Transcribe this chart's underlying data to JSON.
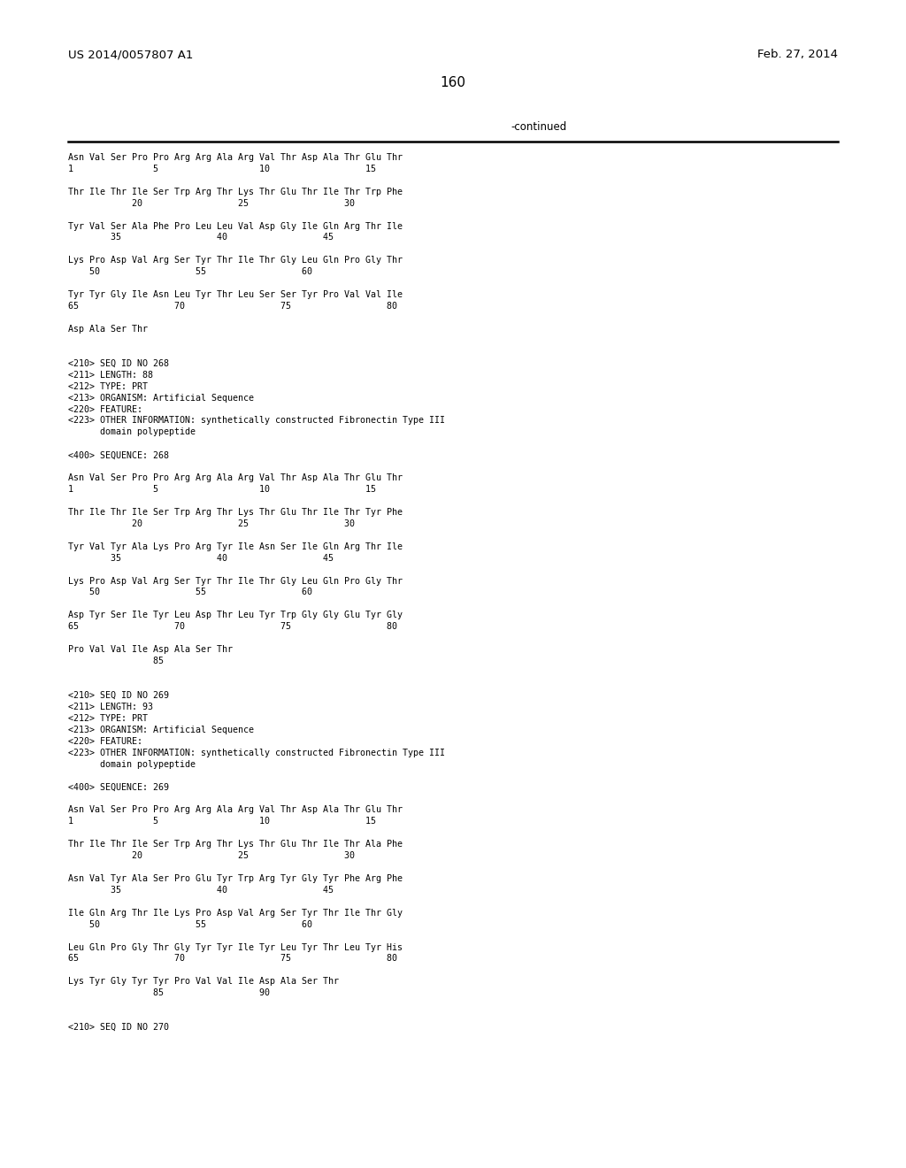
{
  "header_left": "US 2014/0057807 A1",
  "header_right": "Feb. 27, 2014",
  "page_number": "160",
  "continued_label": "-continued",
  "background_color": "#ffffff",
  "text_color": "#000000",
  "body_lines": [
    "Asn Val Ser Pro Pro Arg Arg Ala Arg Val Thr Asp Ala Thr Glu Thr",
    "1               5                   10                  15",
    "",
    "Thr Ile Thr Ile Ser Trp Arg Thr Lys Thr Glu Thr Ile Thr Trp Phe",
    "            20                  25                  30",
    "",
    "Tyr Val Ser Ala Phe Pro Leu Leu Val Asp Gly Ile Gln Arg Thr Ile",
    "        35                  40                  45",
    "",
    "Lys Pro Asp Val Arg Ser Tyr Thr Ile Thr Gly Leu Gln Pro Gly Thr",
    "    50                  55                  60",
    "",
    "Tyr Tyr Gly Ile Asn Leu Tyr Thr Leu Ser Ser Tyr Pro Val Val Ile",
    "65                  70                  75                  80",
    "",
    "Asp Ala Ser Thr",
    "",
    "",
    "<210> SEQ ID NO 268",
    "<211> LENGTH: 88",
    "<212> TYPE: PRT",
    "<213> ORGANISM: Artificial Sequence",
    "<220> FEATURE:",
    "<223> OTHER INFORMATION: synthetically constructed Fibronectin Type III",
    "      domain polypeptide",
    "",
    "<400> SEQUENCE: 268",
    "",
    "Asn Val Ser Pro Pro Arg Arg Ala Arg Val Thr Asp Ala Thr Glu Thr",
    "1               5                   10                  15",
    "",
    "Thr Ile Thr Ile Ser Trp Arg Thr Lys Thr Glu Thr Ile Thr Tyr Phe",
    "            20                  25                  30",
    "",
    "Tyr Val Tyr Ala Lys Pro Arg Tyr Ile Asn Ser Ile Gln Arg Thr Ile",
    "        35                  40                  45",
    "",
    "Lys Pro Asp Val Arg Ser Tyr Thr Ile Thr Gly Leu Gln Pro Gly Thr",
    "    50                  55                  60",
    "",
    "Asp Tyr Ser Ile Tyr Leu Asp Thr Leu Tyr Trp Gly Gly Glu Tyr Gly",
    "65                  70                  75                  80",
    "",
    "Pro Val Val Ile Asp Ala Ser Thr",
    "                85",
    "",
    "",
    "<210> SEQ ID NO 269",
    "<211> LENGTH: 93",
    "<212> TYPE: PRT",
    "<213> ORGANISM: Artificial Sequence",
    "<220> FEATURE:",
    "<223> OTHER INFORMATION: synthetically constructed Fibronectin Type III",
    "      domain polypeptide",
    "",
    "<400> SEQUENCE: 269",
    "",
    "Asn Val Ser Pro Pro Arg Arg Ala Arg Val Thr Asp Ala Thr Glu Thr",
    "1               5                   10                  15",
    "",
    "Thr Ile Thr Ile Ser Trp Arg Thr Lys Thr Glu Thr Ile Thr Ala Phe",
    "            20                  25                  30",
    "",
    "Asn Val Tyr Ala Ser Pro Glu Tyr Trp Arg Tyr Gly Tyr Phe Arg Phe",
    "        35                  40                  45",
    "",
    "Ile Gln Arg Thr Ile Lys Pro Asp Val Arg Ser Tyr Thr Ile Thr Gly",
    "    50                  55                  60",
    "",
    "Leu Gln Pro Gly Thr Gly Tyr Tyr Ile Tyr Leu Tyr Thr Leu Tyr His",
    "65                  70                  75                  80",
    "",
    "Lys Tyr Gly Tyr Tyr Pro Val Val Ile Asp Ala Ser Thr",
    "                85                  90",
    "",
    "",
    "<210> SEQ ID NO 270"
  ]
}
